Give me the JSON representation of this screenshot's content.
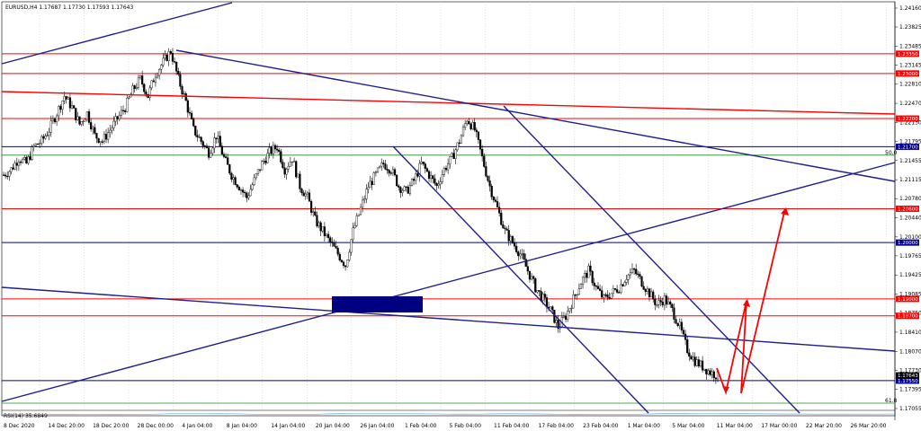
{
  "chart_data": {
    "type": "candlestick",
    "symbol_info": "EURUSD,H4  1.17687 1.17730 1.17593 1.17643",
    "y_range": [
      1.16855,
      1.2433
    ],
    "y_ticks": [
      "1.24160",
      "1.23825",
      "1.23485",
      "1.23145",
      "1.22810",
      "1.22470",
      "1.22130",
      "1.21795",
      "1.21455",
      "1.21115",
      "1.20780",
      "1.20440",
      "1.20100",
      "1.19765",
      "1.19425",
      "1.19085",
      "1.18750",
      "1.18410",
      "1.18070",
      "1.17730",
      "1.17395",
      "1.17055"
    ],
    "x_ticks": [
      "8 Dec 2020",
      "14 Dec 20:00",
      "18 Dec 20:00",
      "28 Dec 00:00",
      "4 Jan 04:00",
      "8 Jan 04:00",
      "14 Jan 04:00",
      "20 Jan 04:00",
      "26 Jan 04:00",
      "1 Feb 04:00",
      "5 Feb 04:00",
      "11 Feb 04:00",
      "17 Feb 04:00",
      "23 Feb 04:00",
      "1 Mar 04:00",
      "5 Mar 04:00",
      "11 Mar 04:00",
      "17 Mar 00:00",
      "22 Mar 20:00",
      "26 Mar 20:00"
    ],
    "horizontal_levels": [
      {
        "price": 1.23,
        "label": "1.23000",
        "color": "#ff0000"
      },
      {
        "price": 1.2335,
        "label": "1.23350",
        "color": "#ff0000"
      },
      {
        "price": 1.222,
        "label": "1.22200",
        "color": "#ff0000"
      },
      {
        "price": 1.217,
        "label": "1.21700",
        "color": "#00008b"
      },
      {
        "price": 1.206,
        "label": "1.20600",
        "color": "#ff0000"
      },
      {
        "price": 1.2,
        "label": "1.20000",
        "color": "#00008b"
      },
      {
        "price": 1.19,
        "label": "1.19000",
        "color": "#ff0000"
      },
      {
        "price": 1.187,
        "label": "1.18700",
        "color": "#ff0000"
      },
      {
        "price": 1.1755,
        "label": "1.17550",
        "color": "#00008b"
      }
    ],
    "fib_levels": [
      {
        "price": 1.2155,
        "label": "50.0"
      },
      {
        "price": 1.1715,
        "label": "61.8"
      }
    ],
    "current_price": {
      "price": 1.17643,
      "label": "1.17643"
    },
    "closes": [
      1.212,
      1.213,
      1.215,
      1.214,
      1.217,
      1.218,
      1.22,
      1.223,
      1.226,
      1.224,
      1.221,
      1.223,
      1.219,
      1.218,
      1.22,
      1.222,
      1.224,
      1.227,
      1.229,
      1.226,
      1.23,
      1.232,
      1.234,
      1.229,
      1.225,
      1.22,
      1.218,
      1.216,
      1.219,
      1.215,
      1.212,
      1.21,
      1.208,
      1.211,
      1.214,
      1.216,
      1.217,
      1.213,
      1.215,
      1.21,
      1.208,
      1.204,
      1.202,
      1.2,
      1.198,
      1.196,
      1.202,
      1.206,
      1.21,
      1.212,
      1.214,
      1.213,
      1.21,
      1.209,
      1.211,
      1.214,
      1.212,
      1.21,
      1.213,
      1.215,
      1.218,
      1.222,
      1.22,
      1.215,
      1.21,
      1.206,
      1.202,
      1.2,
      1.198,
      1.195,
      1.192,
      1.19,
      1.188,
      1.185,
      1.187,
      1.19,
      1.193,
      1.195,
      1.192,
      1.19,
      1.191,
      1.192,
      1.194,
      1.195,
      1.193,
      1.191,
      1.189,
      1.19,
      1.188,
      1.185,
      1.181,
      1.179,
      1.178,
      1.177,
      1.1764
    ],
    "rsi_label": "RSI(14) 35.6849"
  }
}
